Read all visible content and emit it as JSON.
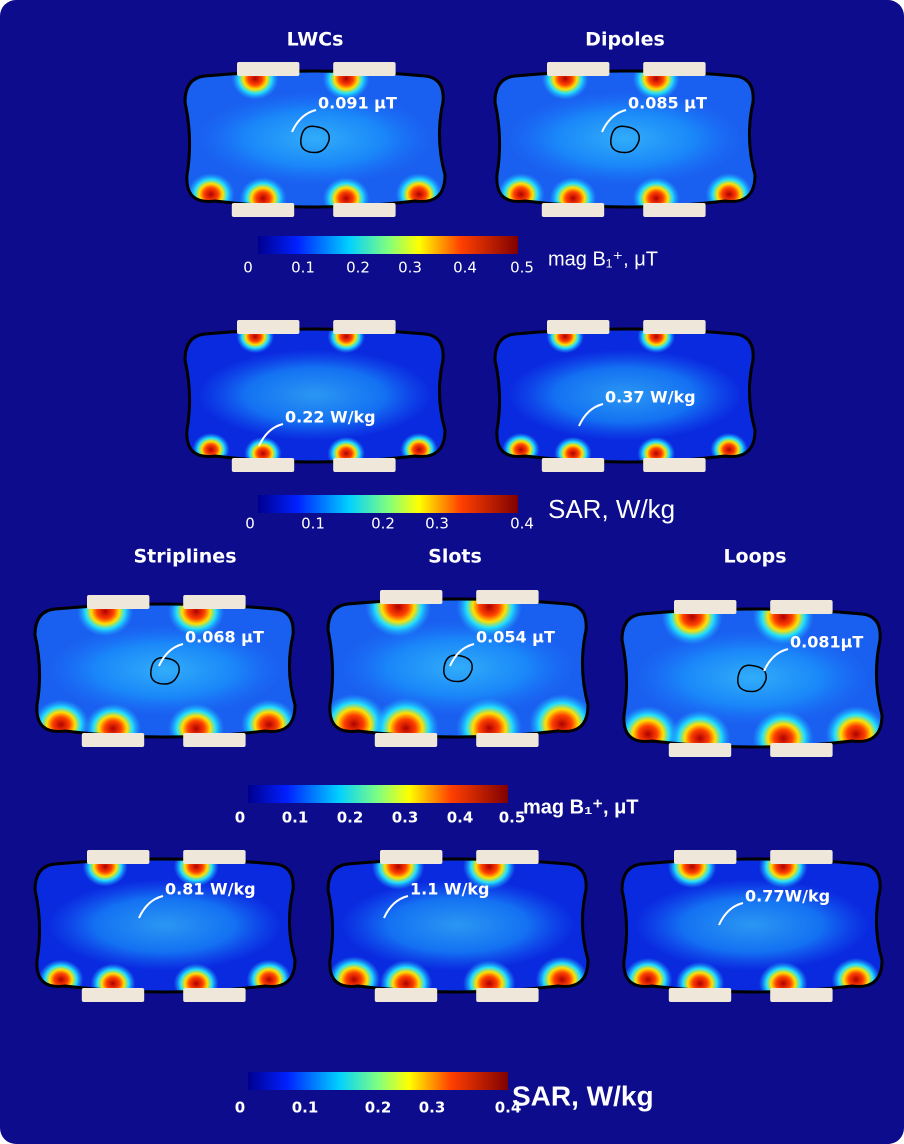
{
  "figure": {
    "groups": [
      {
        "titles": [
          "LWCs",
          "Dipoles"
        ],
        "b1_annotations": [
          "0.091 μT",
          "0.085 μT"
        ],
        "b1_colorbar": {
          "ticks": [
            0,
            0.1,
            0.2,
            0.3,
            0.4,
            0.5
          ],
          "label": "mag B₁⁺, μT"
        },
        "sar_annotations": [
          "0.22 W/kg",
          "0.37 W/kg"
        ],
        "sar_colorbar": {
          "ticks": [
            0,
            0.1,
            0.2,
            0.3,
            0.4
          ],
          "label": "SAR, W/kg"
        }
      },
      {
        "titles": [
          "Striplines",
          "Slots",
          "Loops"
        ],
        "b1_annotations": [
          "0.068 μT",
          "0.054 μT",
          "0.081μT"
        ],
        "b1_colorbar": {
          "ticks": [
            0,
            0.1,
            0.2,
            0.3,
            0.4,
            0.5
          ],
          "label": "mag B₁⁺, μT"
        },
        "sar_annotations": [
          "0.81 W/kg",
          "1.1 W/kg",
          "0.77W/kg"
        ],
        "sar_colorbar": {
          "ticks": [
            0,
            0.1,
            0.2,
            0.3,
            0.4
          ],
          "label": "SAR, W/kg"
        }
      }
    ]
  }
}
